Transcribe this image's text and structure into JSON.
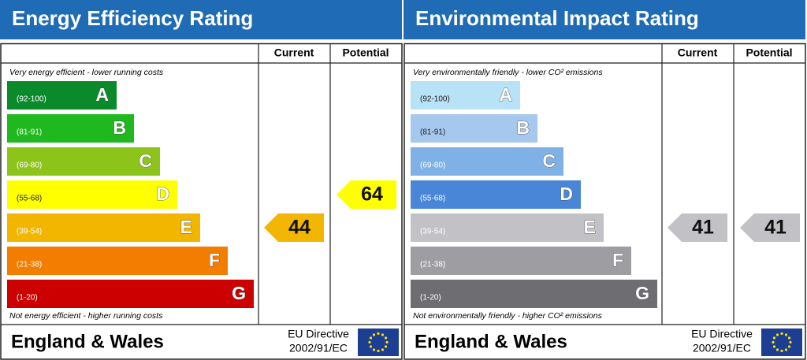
{
  "panels": [
    {
      "title": "Energy Efficiency Rating",
      "columns": [
        "Current",
        "Potential"
      ],
      "top_note": "Very energy efficient - lower running costs",
      "bottom_note": "Not energy efficient - higher running costs",
      "bands": [
        {
          "range": "(92-100)",
          "letter": "A",
          "color": "#0b8a2c",
          "text_color": "#ffffff"
        },
        {
          "range": "(81-91)",
          "letter": "B",
          "color": "#1fb81f",
          "text_color": "#ffffff"
        },
        {
          "range": "(69-80)",
          "letter": "C",
          "color": "#8dc41a",
          "text_color": "#ffffff"
        },
        {
          "range": "(55-68)",
          "letter": "D",
          "color": "#ffff00",
          "text_color": "#222222"
        },
        {
          "range": "(39-54)",
          "letter": "E",
          "color": "#f2b500",
          "text_color": "#ffffff"
        },
        {
          "range": "(21-38)",
          "letter": "F",
          "color": "#f27d00",
          "text_color": "#ffffff"
        },
        {
          "range": "(1-20)",
          "letter": "G",
          "color": "#cc0000",
          "text_color": "#ffffff"
        }
      ],
      "current": 44,
      "potential": 64,
      "region": "England & Wales",
      "directive": [
        "EU Directive",
        "2002/91/EC"
      ]
    },
    {
      "title": "Environmental Impact Rating",
      "columns": [
        "Current",
        "Potential"
      ],
      "top_note": "Very environmentally friendly - lower CO² emissions",
      "bottom_note": "Not environmentally friendly - higher CO² emissions",
      "bands": [
        {
          "range": "(92-100)",
          "letter": "A",
          "color": "#b8e2f6",
          "text_color": "#222222"
        },
        {
          "range": "(81-91)",
          "letter": "B",
          "color": "#a6c8ee",
          "text_color": "#222222"
        },
        {
          "range": "(69-80)",
          "letter": "C",
          "color": "#7fb0e6",
          "text_color": "#ffffff"
        },
        {
          "range": "(55-68)",
          "letter": "D",
          "color": "#4a86d8",
          "text_color": "#ffffff"
        },
        {
          "range": "(39-54)",
          "letter": "E",
          "color": "#c2c2c6",
          "text_color": "#ffffff"
        },
        {
          "range": "(21-38)",
          "letter": "F",
          "color": "#9e9ea2",
          "text_color": "#ffffff"
        },
        {
          "range": "(1-20)",
          "letter": "G",
          "color": "#6e6e72",
          "text_color": "#ffffff"
        }
      ],
      "current": 41,
      "potential": 41,
      "region": "England & Wales",
      "directive": [
        "EU Directive",
        "2002/91/EC"
      ]
    }
  ]
}
